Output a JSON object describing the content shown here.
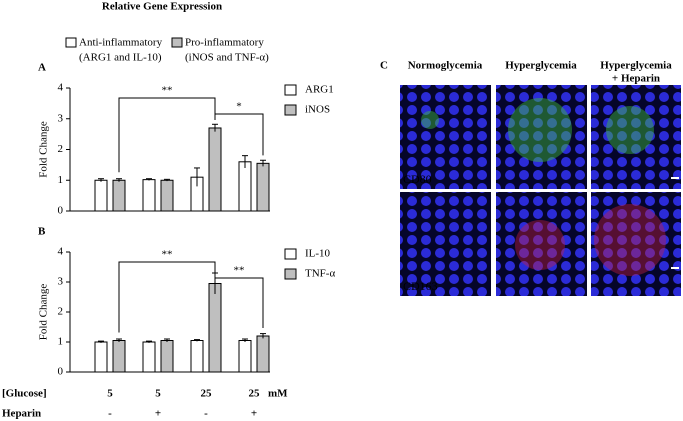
{
  "figure_title": "Relative Gene Expression",
  "legend_header": [
    {
      "lines": [
        "Anti-inflammatory",
        "(ARG1 and IL-10)"
      ],
      "color": "#ffffff"
    },
    {
      "lines": [
        "Pro-inflammatory",
        "(iNOS and TNF-α)"
      ],
      "color": "#bfbfbf"
    }
  ],
  "chart_data": [
    {
      "type": "bar",
      "panel": "A",
      "ylabel": "Fold Change",
      "ylim": [
        0,
        4
      ],
      "yticks": [
        0,
        1,
        2,
        3,
        4
      ],
      "series": [
        {
          "name": "ARG1",
          "color": "#ffffff",
          "values": [
            1.0,
            1.02,
            1.1,
            1.6
          ],
          "errors": [
            0.05,
            0.03,
            0.3,
            0.2
          ]
        },
        {
          "name": "iNOS",
          "color": "#bfbfbf",
          "values": [
            1.0,
            1.0,
            2.7,
            1.55
          ],
          "errors": [
            0.05,
            0.03,
            0.12,
            0.1
          ]
        }
      ],
      "significance": [
        {
          "groups": [
            0,
            2
          ],
          "label": "**"
        },
        {
          "groups": [
            2,
            3
          ],
          "label": "*"
        }
      ]
    },
    {
      "type": "bar",
      "panel": "B",
      "ylabel": "Fold Change",
      "ylim": [
        0,
        4
      ],
      "yticks": [
        0,
        1,
        2,
        3,
        4
      ],
      "series": [
        {
          "name": "IL-10",
          "color": "#ffffff",
          "values": [
            1.0,
            1.0,
            1.05,
            1.05
          ],
          "errors": [
            0.03,
            0.03,
            0.03,
            0.05
          ]
        },
        {
          "name": "TNF-α",
          "color": "#bfbfbf",
          "values": [
            1.05,
            1.05,
            2.95,
            1.2
          ],
          "errors": [
            0.05,
            0.05,
            0.35,
            0.08
          ]
        }
      ],
      "significance": [
        {
          "groups": [
            0,
            2
          ],
          "label": "**"
        },
        {
          "groups": [
            2,
            3
          ],
          "label": "**"
        }
      ]
    }
  ],
  "conditions": {
    "glucose_label": "[Glucose]",
    "glucose": [
      "5",
      "5",
      "25",
      "25"
    ],
    "unit": "mM",
    "heparin_label": "Heparin",
    "heparin": [
      "-",
      "+",
      "-",
      "+"
    ]
  },
  "panel_c": {
    "label": "C",
    "columns": [
      [
        "Normoglycemia"
      ],
      [
        "Hyperglycemia"
      ],
      [
        "Hyperglycemia",
        "+ Heparin"
      ]
    ],
    "markers": [
      {
        "text": "CD80",
        "color": "#3fbf3f"
      },
      {
        "text": "CD163",
        "color": "#e02020"
      }
    ]
  }
}
